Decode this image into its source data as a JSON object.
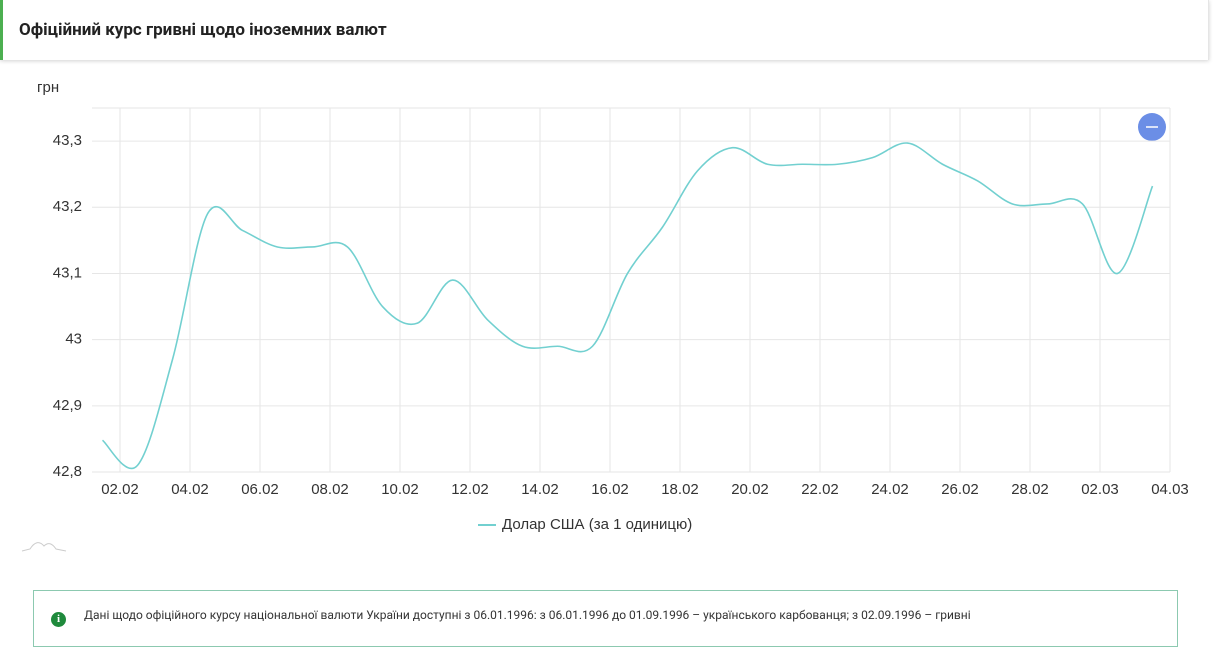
{
  "header": {
    "title": "Офіційний курс гривні щодо іноземних валют"
  },
  "chart_data": {
    "type": "line",
    "y_label": "грн",
    "x": [
      1.5,
      2.5,
      3.5,
      4.5,
      5.5,
      6.5,
      7.5,
      8.5,
      9.5,
      10.5,
      11.5,
      12.5,
      13.5,
      14.5,
      15.5,
      16.5,
      17.5,
      18.5,
      19.5,
      20.5,
      21.5,
      22.5,
      23.5,
      24.5,
      25.5,
      26.5,
      27.5,
      28.5,
      29.5,
      30.5,
      31.5
    ],
    "series": [
      {
        "name": "Долар США (за 1 одиницю)",
        "color": "#72d0d0",
        "values": [
          42.848,
          42.81,
          42.97,
          43.19,
          43.165,
          43.14,
          43.14,
          43.14,
          43.05,
          43.025,
          43.09,
          43.03,
          42.99,
          42.99,
          42.99,
          43.1,
          43.17,
          43.255,
          43.29,
          43.265,
          43.265,
          43.265,
          43.275,
          43.297,
          43.265,
          43.24,
          43.205,
          43.205,
          43.205,
          43.1,
          43.232
        ]
      }
    ],
    "xlim": [
      1.2,
      32
    ],
    "ylim": [
      42.8,
      43.35
    ],
    "xticks": [
      {
        "value": 2,
        "label": "02.02"
      },
      {
        "value": 4,
        "label": "04.02"
      },
      {
        "value": 6,
        "label": "06.02"
      },
      {
        "value": 8,
        "label": "08.02"
      },
      {
        "value": 10,
        "label": "10.02"
      },
      {
        "value": 12,
        "label": "12.02"
      },
      {
        "value": 14,
        "label": "14.02"
      },
      {
        "value": 16,
        "label": "16.02"
      },
      {
        "value": 18,
        "label": "18.02"
      },
      {
        "value": 20,
        "label": "20.02"
      },
      {
        "value": 22,
        "label": "22.02"
      },
      {
        "value": 24,
        "label": "24.02"
      },
      {
        "value": 26,
        "label": "26.02"
      },
      {
        "value": 28,
        "label": "28.02"
      },
      {
        "value": 30,
        "label": "02.03"
      },
      {
        "value": 32,
        "label": "04.03"
      }
    ],
    "yticks": [
      {
        "value": 42.8,
        "label": "42,8"
      },
      {
        "value": 42.9,
        "label": "42,9"
      },
      43,
      {
        "value": 43.1,
        "label": "43,1"
      },
      {
        "value": 43.2,
        "label": "43,2"
      },
      {
        "value": 43.3,
        "label": "43,3"
      }
    ],
    "grid": true
  },
  "notice": {
    "text": "Дані щодо офіційного курсу національної валюти України доступні з 06.01.1996: з 06.01.1996 до 01.09.1996 – українського карбованця; з 02.09.1996 – гривні"
  }
}
